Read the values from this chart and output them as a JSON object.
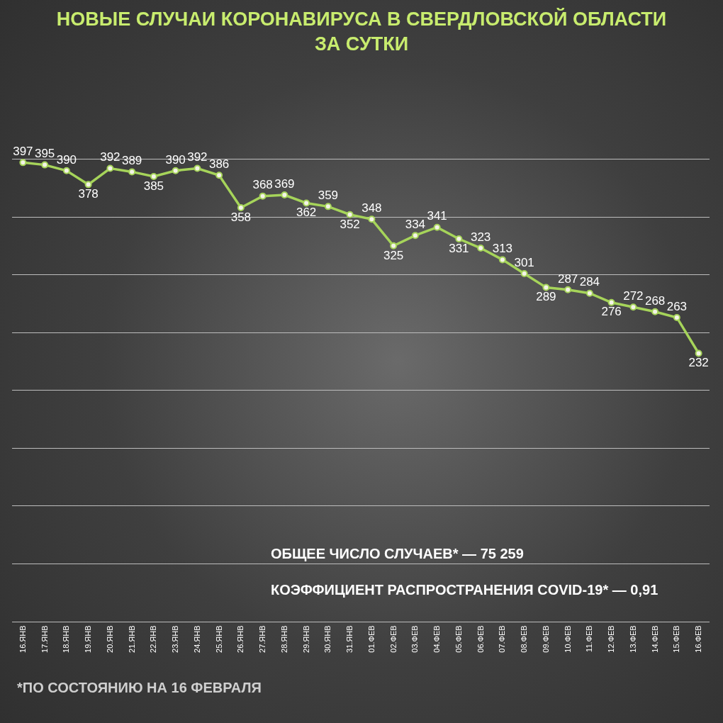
{
  "chart_data": {
    "type": "line",
    "title": "НОВЫЕ СЛУЧАИ КОРОНАВИРУСА В СВЕРДЛОВСКОЙ ОБЛАСТИ\nЗА СУТКИ",
    "categories": [
      "16.ЯНВ",
      "17.ЯНВ",
      "18.ЯНВ",
      "19.ЯНВ",
      "20.ЯНВ",
      "21.ЯНВ",
      "22.ЯНВ",
      "23.ЯНВ",
      "24.ЯНВ",
      "25.ЯНВ",
      "26.ЯНВ",
      "27.ЯНВ",
      "28.ЯНВ",
      "29.ЯНВ",
      "30.ЯНВ",
      "31.ЯНВ",
      "01.ФЕВ",
      "02.ФЕВ",
      "03.ФЕВ",
      "04.ФЕВ",
      "05.ФЕВ",
      "06.ФЕВ",
      "07.ФЕВ",
      "08.ФЕВ",
      "09.ФЕВ",
      "10.ФЕВ",
      "11.ФЕВ",
      "12.ФЕВ",
      "13.ФЕВ",
      "14.ФЕВ",
      "15.ФЕВ",
      "16.ФЕВ"
    ],
    "series": [
      {
        "color": "#a6d45a",
        "values": [
          397,
          395,
          390,
          378,
          392,
          389,
          385,
          390,
          392,
          386,
          358,
          368,
          369,
          362,
          359,
          352,
          348,
          325,
          334,
          341,
          331,
          323,
          313,
          301,
          289,
          287,
          284,
          276,
          272,
          268,
          263,
          232
        ]
      }
    ],
    "yticks": [
      {
        "value": 50,
        "label": null
      },
      {
        "value": 100,
        "label": null
      },
      {
        "value": 150,
        "label": null
      },
      {
        "value": 200,
        "label": null
      },
      {
        "value": 250,
        "label": null
      },
      {
        "value": 300,
        "label": null
      },
      {
        "value": 350,
        "label": null
      },
      {
        "value": 400,
        "label": null
      }
    ],
    "tick_labels": "x",
    "grid": "y",
    "marker": "circle",
    "line_style": "solid",
    "data_labels": true,
    "annotations": [
      "ОБЩЕЕ ЧИСЛО СЛУЧАЕВ* — 75 259",
      "КОЭФФИЦИЕНТ РАСПРОСТРАНЕНИЯ COVID-19* — 0,91",
      "*ПО СОСТОЯНИЮ НА 16 ФЕВРАЛЯ"
    ]
  }
}
